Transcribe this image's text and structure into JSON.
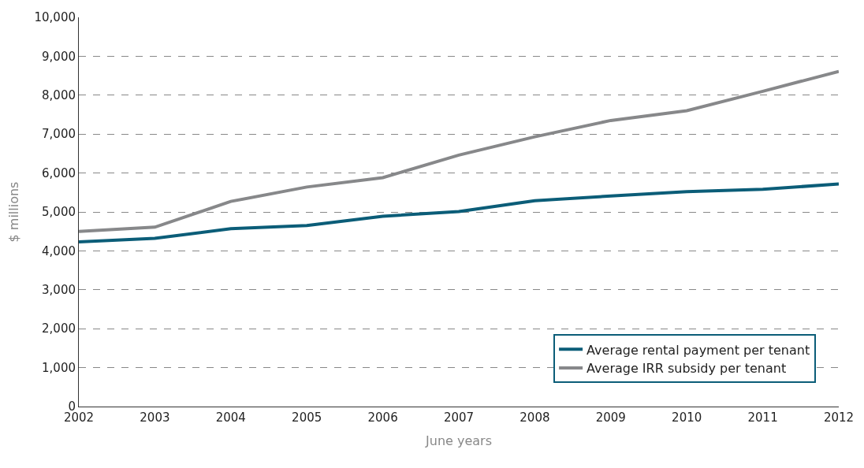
{
  "chart_data": {
    "type": "line",
    "xlabel": "June years",
    "ylabel": "$ millions",
    "x": [
      2002,
      2003,
      2004,
      2005,
      2006,
      2007,
      2008,
      2009,
      2010,
      2011,
      2012
    ],
    "series": [
      {
        "name": "Average rental payment per tenant",
        "color": "#0b5d78",
        "values": [
          4230,
          4320,
          4570,
          4650,
          4890,
          5010,
          5290,
          5410,
          5520,
          5580,
          5720
        ]
      },
      {
        "name": "Average IRR subsidy per tenant",
        "color": "#87888a",
        "values": [
          4500,
          4610,
          5270,
          5640,
          5880,
          6460,
          6930,
          7350,
          7600,
          8100,
          8610
        ]
      }
    ],
    "xlim": [
      2002,
      2012
    ],
    "xticks": [
      2002,
      2003,
      2004,
      2005,
      2006,
      2007,
      2008,
      2009,
      2010,
      2011,
      2012
    ],
    "ylim": [
      0,
      10000
    ],
    "yticks": [
      {
        "value": 0,
        "label": "0"
      },
      {
        "value": 1000,
        "label": "1,000"
      },
      {
        "value": 2000,
        "label": "2,000"
      },
      {
        "value": 3000,
        "label": "3,000"
      },
      {
        "value": 4000,
        "label": "4,000"
      },
      {
        "value": 5000,
        "label": "5,000"
      },
      {
        "value": 6000,
        "label": "6,000"
      },
      {
        "value": 7000,
        "label": "7,000"
      },
      {
        "value": 8000,
        "label": "8,000"
      },
      {
        "value": 9000,
        "label": "9,000"
      },
      {
        "value": 10000,
        "label": "10,000"
      }
    ],
    "grid": "y",
    "legend": "bottom right",
    "marker": "none",
    "line_style": "solid"
  }
}
